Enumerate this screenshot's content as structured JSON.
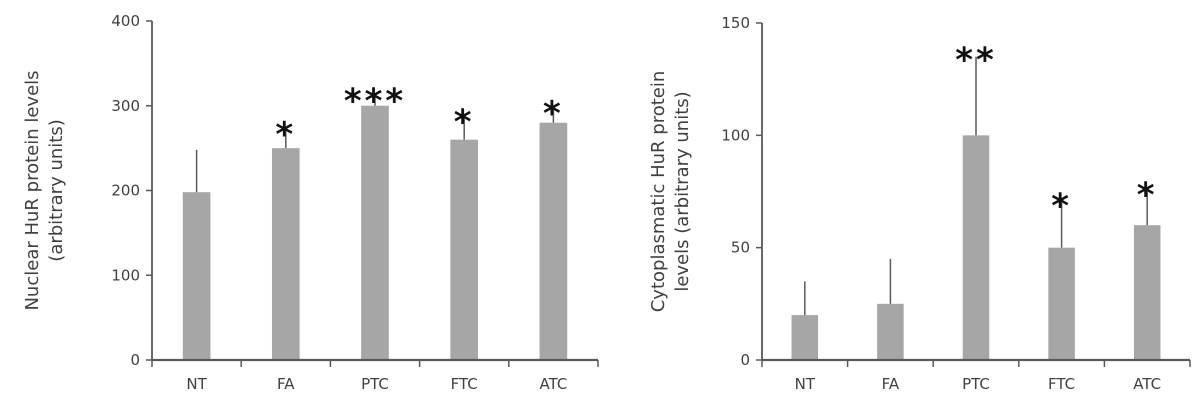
{
  "chart_data": [
    {
      "type": "bar",
      "categories": [
        "NT",
        "FA",
        "PTC",
        "FTC",
        "ATC"
      ],
      "values": [
        198,
        250,
        300,
        260,
        280
      ],
      "error": [
        50,
        20,
        10,
        25,
        15
      ],
      "significance": [
        "",
        "*",
        "***",
        "*",
        "*"
      ],
      "ylabel_lines": [
        "Nuclear HuR protein levels",
        "(arbitrary units)"
      ],
      "ylim": [
        0,
        400
      ],
      "yticks": [
        0,
        100,
        200,
        300,
        400
      ],
      "bar_color": "#a6a6a6",
      "axis_color": "#595959",
      "grid": false
    },
    {
      "type": "bar",
      "categories": [
        "NT",
        "FA",
        "PTC",
        "FTC",
        "ATC"
      ],
      "values": [
        20,
        25,
        100,
        50,
        60
      ],
      "error": [
        15,
        20,
        35,
        20,
        15
      ],
      "significance": [
        "",
        "",
        "**",
        "*",
        "*"
      ],
      "ylabel_lines": [
        "Cytoplasmatic HuR protein",
        "levels (arbitrary units)"
      ],
      "ylim": [
        0,
        150
      ],
      "yticks": [
        0,
        50,
        100,
        150
      ],
      "bar_color": "#a6a6a6",
      "axis_color": "#595959",
      "grid": false
    }
  ]
}
